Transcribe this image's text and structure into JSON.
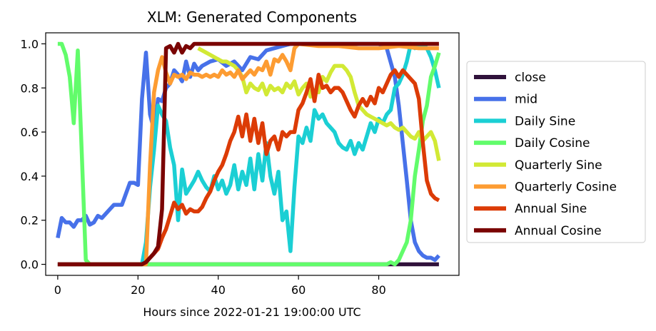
{
  "chart_data": {
    "type": "line",
    "title": "XLM: Generated Components",
    "xlabel": "Hours since 2022-01-21 19:00:00 UTC",
    "ylabel": "",
    "xlim": [
      -3,
      100
    ],
    "ylim": [
      -0.05,
      1.05
    ],
    "xticks": [
      0,
      20,
      40,
      60,
      80
    ],
    "yticks": [
      0.0,
      0.2,
      0.4,
      0.6,
      0.8,
      1.0
    ],
    "ytick_labels": [
      "0.0",
      "0.2",
      "0.4",
      "0.6",
      "0.8",
      "1.0"
    ],
    "grid": false,
    "legend_position": "right-outside",
    "series": [
      {
        "name": "close",
        "color": "#30123b",
        "x": [
          0,
          95
        ],
        "y": [
          0,
          0
        ]
      },
      {
        "name": "mid",
        "color": "#4771e9",
        "x": [
          0,
          1,
          2,
          3,
          4,
          5,
          6,
          7,
          8,
          9,
          10,
          11,
          12,
          13,
          14,
          15,
          16,
          17,
          18,
          19,
          20,
          21,
          22,
          23,
          24,
          25,
          26,
          27,
          28,
          29,
          30,
          31,
          32,
          33,
          34,
          35,
          36,
          38,
          40,
          42,
          44,
          46,
          48,
          50,
          52,
          54,
          56,
          58,
          60,
          70,
          80,
          82,
          84,
          85,
          86,
          87,
          88,
          89,
          90,
          91,
          92,
          93,
          94,
          95
        ],
        "y": [
          0.12,
          0.21,
          0.19,
          0.19,
          0.17,
          0.2,
          0.2,
          0.22,
          0.18,
          0.19,
          0.22,
          0.21,
          0.23,
          0.25,
          0.27,
          0.27,
          0.27,
          0.32,
          0.37,
          0.37,
          0.36,
          0.75,
          0.96,
          0.68,
          0.61,
          0.75,
          0.74,
          0.8,
          0.82,
          0.88,
          0.86,
          0.83,
          0.92,
          0.85,
          0.91,
          0.88,
          0.9,
          0.92,
          0.93,
          0.9,
          0.92,
          0.88,
          0.94,
          0.93,
          0.97,
          0.98,
          0.99,
          1.0,
          1.0,
          1.0,
          1.0,
          0.98,
          0.85,
          0.72,
          0.55,
          0.38,
          0.2,
          0.1,
          0.06,
          0.04,
          0.03,
          0.03,
          0.02,
          0.04
        ]
      },
      {
        "name": "Daily Sine",
        "color": "#1bcfd4",
        "x": [
          0,
          20,
          21,
          22,
          23,
          24,
          25,
          26,
          27,
          28,
          29,
          30,
          31,
          32,
          33,
          34,
          35,
          36,
          37,
          38,
          39,
          40,
          41,
          42,
          43,
          44,
          45,
          46,
          47,
          48,
          49,
          50,
          51,
          52,
          53,
          54,
          55,
          56,
          57,
          58,
          59,
          60,
          61,
          62,
          63,
          64,
          65,
          66,
          67,
          68,
          69,
          70,
          71,
          72,
          73,
          74,
          75,
          76,
          77,
          78,
          79,
          80,
          81,
          82,
          83,
          84,
          85,
          86,
          87,
          88,
          89,
          90,
          91,
          92,
          93,
          94,
          95
        ],
        "y": [
          0,
          0,
          0,
          0.1,
          0.35,
          0.52,
          0.72,
          0.68,
          0.65,
          0.53,
          0.45,
          0.2,
          0.43,
          0.32,
          0.35,
          0.38,
          0.42,
          0.38,
          0.35,
          0.33,
          0.4,
          0.34,
          0.38,
          0.32,
          0.36,
          0.45,
          0.34,
          0.42,
          0.36,
          0.48,
          0.34,
          0.5,
          0.38,
          0.55,
          0.4,
          0.32,
          0.42,
          0.2,
          0.24,
          0.06,
          0.35,
          0.58,
          0.55,
          0.62,
          0.56,
          0.7,
          0.66,
          0.68,
          0.64,
          0.62,
          0.6,
          0.55,
          0.53,
          0.52,
          0.56,
          0.5,
          0.55,
          0.52,
          0.58,
          0.64,
          0.6,
          0.66,
          0.64,
          0.68,
          0.7,
          0.8,
          0.82,
          0.86,
          0.92,
          1.0,
          0.98,
          0.99,
          1.0,
          0.98,
          0.94,
          0.88,
          0.8
        ]
      },
      {
        "name": "Daily Cosine",
        "color": "#62fc6b",
        "x": [
          0,
          1,
          2,
          3,
          4,
          5,
          6,
          7,
          8,
          20,
          30,
          40,
          50,
          60,
          70,
          80,
          81,
          82,
          83,
          84,
          85,
          86,
          87,
          88,
          89,
          90,
          91,
          92,
          93,
          94,
          95
        ],
        "y": [
          1.0,
          1.0,
          0.95,
          0.85,
          0.64,
          0.97,
          0.5,
          0.02,
          0,
          0,
          0,
          0,
          0,
          0,
          0,
          0,
          0,
          0,
          0.01,
          0,
          0.02,
          0.06,
          0.1,
          0.2,
          0.4,
          0.52,
          0.65,
          0.72,
          0.85,
          0.9,
          0.96
        ]
      },
      {
        "name": "Quarterly Sine",
        "color": "#d2e935",
        "x": [
          35,
          36,
          37,
          38,
          39,
          40,
          41,
          42,
          43,
          44,
          45,
          46,
          47,
          48,
          49,
          50,
          51,
          52,
          53,
          54,
          55,
          56,
          57,
          58,
          59,
          60,
          61,
          62,
          63,
          64,
          65,
          66,
          67,
          68,
          69,
          70,
          71,
          72,
          73,
          74,
          75,
          76,
          77,
          78,
          79,
          80,
          81,
          82,
          83,
          84,
          85,
          86,
          87,
          88,
          89,
          90,
          91,
          92,
          93,
          94,
          95
        ],
        "y": [
          0.98,
          0.97,
          0.96,
          0.95,
          0.94,
          0.93,
          0.92,
          0.92,
          0.91,
          0.9,
          0.88,
          0.85,
          0.78,
          0.82,
          0.8,
          0.79,
          0.82,
          0.77,
          0.81,
          0.79,
          0.8,
          0.78,
          0.82,
          0.8,
          0.83,
          0.77,
          0.8,
          0.82,
          0.76,
          0.79,
          0.78,
          0.85,
          0.83,
          0.87,
          0.9,
          0.9,
          0.9,
          0.88,
          0.85,
          0.78,
          0.72,
          0.7,
          0.68,
          0.67,
          0.66,
          0.65,
          0.64,
          0.63,
          0.64,
          0.62,
          0.61,
          0.62,
          0.6,
          0.58,
          0.57,
          0.6,
          0.56,
          0.58,
          0.6,
          0.56,
          0.47
        ]
      },
      {
        "name": "Quarterly Cosine",
        "color": "#fd9c32",
        "x": [
          21,
          22,
          23,
          24,
          25,
          26,
          27,
          28,
          29,
          30,
          31,
          32,
          33,
          34,
          35,
          36,
          37,
          38,
          39,
          40,
          41,
          42,
          43,
          44,
          45,
          46,
          47,
          48,
          49,
          50,
          51,
          52,
          53,
          54,
          55,
          56,
          57,
          58,
          59,
          60,
          65,
          70,
          75,
          80,
          85,
          90,
          95
        ],
        "y": [
          0,
          0,
          0.45,
          0.78,
          0.88,
          0.94,
          0.87,
          0.82,
          0.86,
          0.85,
          0.86,
          0.84,
          0.87,
          0.86,
          0.86,
          0.85,
          0.86,
          0.85,
          0.86,
          0.85,
          0.88,
          0.86,
          0.87,
          0.85,
          0.88,
          0.84,
          0.86,
          0.88,
          0.86,
          0.89,
          0.88,
          0.92,
          0.86,
          0.93,
          0.92,
          0.95,
          0.92,
          0.88,
          0.98,
          1.0,
          0.99,
          0.99,
          0.98,
          0.98,
          0.99,
          0.98,
          0.98
        ]
      },
      {
        "name": "Annual Sine",
        "color": "#dc3b06",
        "x": [
          0,
          20,
          21,
          22,
          23,
          24,
          25,
          26,
          27,
          28,
          29,
          30,
          31,
          32,
          33,
          34,
          35,
          36,
          37,
          38,
          39,
          40,
          41,
          42,
          43,
          44,
          45,
          46,
          47,
          48,
          49,
          50,
          51,
          52,
          53,
          54,
          55,
          56,
          57,
          58,
          59,
          60,
          61,
          62,
          63,
          64,
          65,
          66,
          67,
          68,
          69,
          70,
          71,
          72,
          73,
          74,
          75,
          76,
          77,
          78,
          79,
          80,
          81,
          82,
          83,
          84,
          85,
          86,
          87,
          88,
          89,
          90,
          91,
          92,
          93,
          94,
          95
        ],
        "y": [
          0,
          0,
          0,
          0.01,
          0.03,
          0.05,
          0.07,
          0.12,
          0.16,
          0.22,
          0.28,
          0.25,
          0.27,
          0.23,
          0.25,
          0.24,
          0.24,
          0.26,
          0.3,
          0.33,
          0.38,
          0.42,
          0.45,
          0.5,
          0.56,
          0.6,
          0.67,
          0.58,
          0.68,
          0.56,
          0.66,
          0.55,
          0.64,
          0.5,
          0.56,
          0.58,
          0.52,
          0.6,
          0.58,
          0.6,
          0.6,
          0.7,
          0.73,
          0.78,
          0.84,
          0.74,
          0.86,
          0.8,
          0.81,
          0.78,
          0.8,
          0.8,
          0.78,
          0.74,
          0.7,
          0.67,
          0.72,
          0.75,
          0.72,
          0.76,
          0.73,
          0.8,
          0.78,
          0.82,
          0.86,
          0.88,
          0.85,
          0.88,
          0.86,
          0.84,
          0.82,
          0.75,
          0.55,
          0.38,
          0.32,
          0.3,
          0.29
        ]
      },
      {
        "name": "Annual Cosine",
        "color": "#7a0403",
        "x": [
          0,
          20,
          21,
          22,
          23,
          24,
          25,
          26,
          27,
          28,
          29,
          30,
          31,
          32,
          33,
          34,
          35,
          40,
          50,
          60,
          70,
          80,
          90,
          95
        ],
        "y": [
          0,
          0,
          0,
          0.01,
          0.03,
          0.05,
          0.08,
          0.25,
          0.98,
          0.99,
          0.96,
          1.0,
          0.96,
          0.99,
          0.98,
          1.0,
          1.0,
          1.0,
          1.0,
          1.0,
          1.0,
          1.0,
          1.0,
          1.0
        ]
      }
    ]
  }
}
